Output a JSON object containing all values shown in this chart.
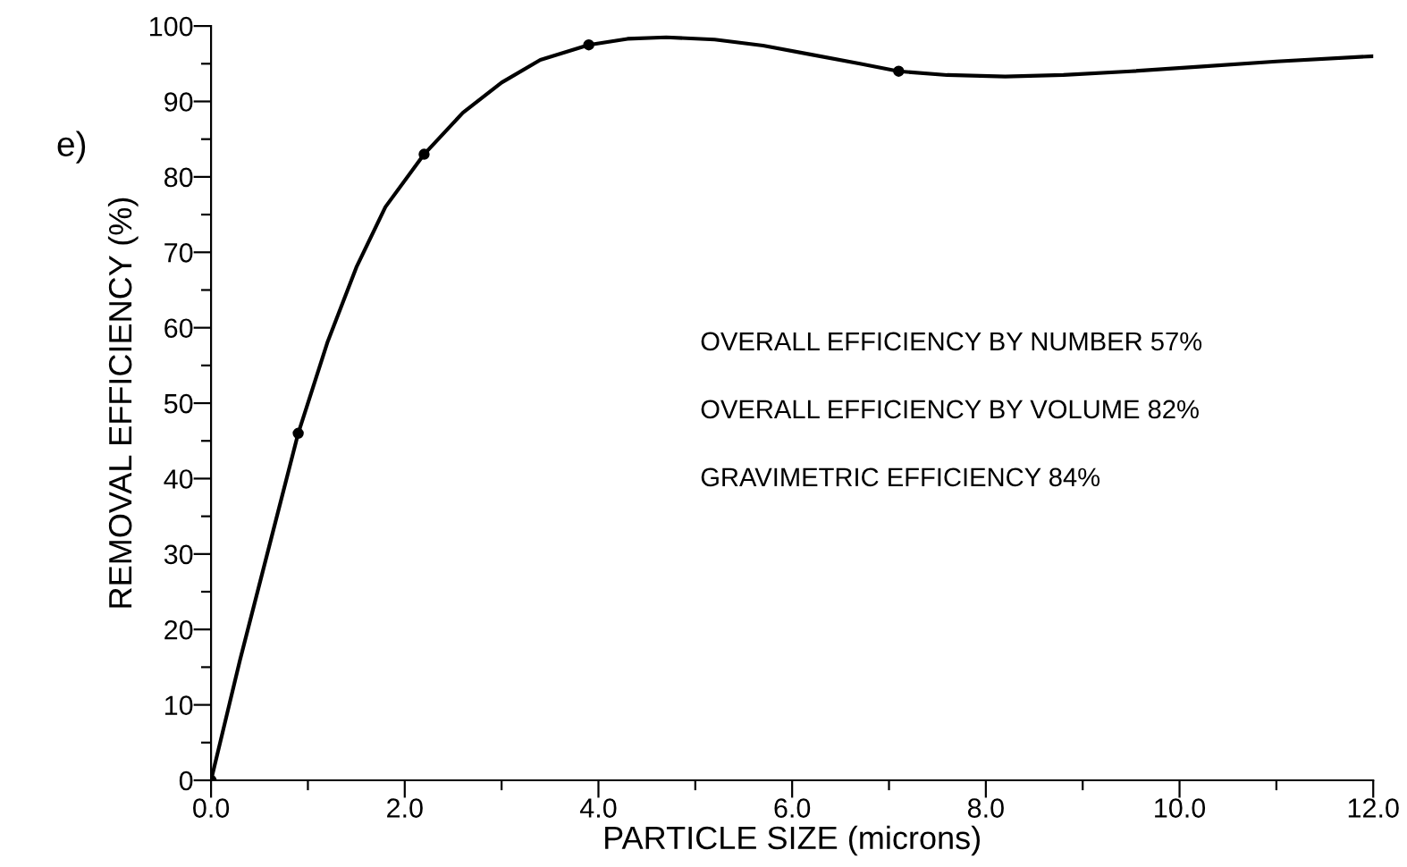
{
  "chart_data": {
    "type": "line",
    "xlabel": "PARTICLE SIZE (microns)",
    "ylabel": "REMOVAL EFFICIENCY (%)",
    "annotations": [
      "e)",
      "OVERALL EFFICIENCY BY NUMBER 57%",
      "OVERALL EFFICIENCY BY VOLUME 82%",
      "GRAVIMETRIC EFFICIENCY 84%"
    ],
    "series": [
      {
        "color": "#000000",
        "marker": "none",
        "line_style": "solid",
        "x": [
          0,
          0.3,
          0.6,
          0.9,
          1.2,
          1.5,
          1.8,
          2.2,
          2.6,
          3.0,
          3.4,
          3.9,
          4.3,
          4.7,
          5.2,
          5.7,
          6.2,
          6.7,
          7.1,
          7.6,
          8.2,
          8.8,
          9.5,
          10.2,
          11,
          12
        ],
        "values": [
          0,
          16,
          31,
          46,
          58,
          68,
          76,
          83,
          88.5,
          92.5,
          95.5,
          97.5,
          98.3,
          98.5,
          98.2,
          97.4,
          96.2,
          95,
          94,
          93.5,
          93.3,
          93.5,
          94,
          94.6,
          95.3,
          96
        ]
      },
      {
        "type": "scatter",
        "color": "#000000",
        "marker": "circle",
        "x": [
          0,
          0.9,
          2.2,
          3.9,
          7.1
        ],
        "values": [
          0,
          46,
          83,
          97.5,
          94
        ]
      }
    ],
    "xlim": [
      0,
      12
    ],
    "ylim": [
      0,
      100
    ],
    "xticks": [
      {
        "value": 0,
        "label": "0.0"
      },
      {
        "value": 1,
        "label": null
      },
      {
        "value": 2,
        "label": "2.0"
      },
      {
        "value": 3,
        "label": null
      },
      {
        "value": 4,
        "label": "4.0"
      },
      {
        "value": 5,
        "label": null
      },
      {
        "value": 6,
        "label": "6.0"
      },
      {
        "value": 7,
        "label": null
      },
      {
        "value": 8,
        "label": "8.0"
      },
      {
        "value": 9,
        "label": null
      },
      {
        "value": 10,
        "label": "10.0"
      },
      {
        "value": 11,
        "label": null
      },
      {
        "value": 12,
        "label": "12.0"
      }
    ],
    "yticks": [
      0,
      {
        "value": 5,
        "label": null
      },
      10,
      {
        "value": 15,
        "label": null
      },
      20,
      {
        "value": 25,
        "label": null
      },
      30,
      {
        "value": 35,
        "label": null
      },
      40,
      {
        "value": 45,
        "label": null
      },
      50,
      {
        "value": 55,
        "label": null
      },
      60,
      {
        "value": 65,
        "label": null
      },
      70,
      {
        "value": 75,
        "label": null
      },
      80,
      {
        "value": 85,
        "label": null
      },
      90,
      {
        "value": 95,
        "label": null
      },
      100
    ],
    "grid": false,
    "legend": false
  }
}
